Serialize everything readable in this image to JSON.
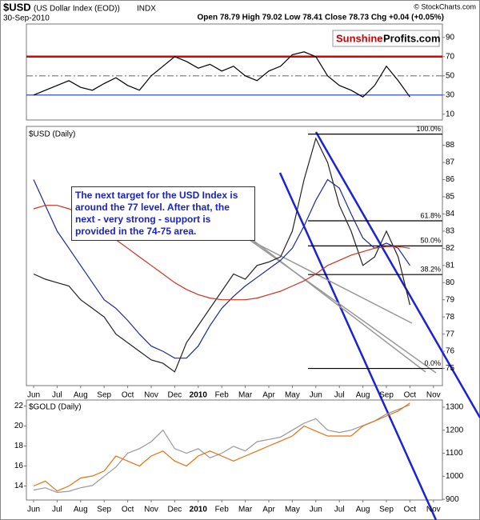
{
  "header": {
    "symbol": "$USD",
    "name": "(US Dollar Index (EOD))",
    "exchange": "INDX",
    "date": "30-Sep-2010",
    "quote": "Open 78.79 High 79.02 Low 78.41 Close 78.73 Chg +0.04 (+0.05%)",
    "copyright": "© StockCharts.com",
    "logo_left": "Sunshine",
    "logo_right": "Profits.com"
  },
  "chart_data": [
    {
      "type": "line",
      "ylim": [
        4,
        104
      ],
      "yticks": [
        10,
        30,
        50,
        70,
        90
      ],
      "reference_lines": [
        {
          "value": 70,
          "color": "#e00000"
        },
        {
          "value": 50,
          "color": "#777777"
        },
        {
          "value": 30,
          "color": "#2233cc"
        }
      ],
      "series": [
        {
          "color": "#000000",
          "values": [
            30,
            35,
            40,
            45,
            38,
            35,
            42,
            48,
            40,
            35,
            50,
            60,
            70,
            65,
            58,
            62,
            55,
            60,
            50,
            45,
            55,
            60,
            72,
            75,
            70,
            50,
            40,
            35,
            28,
            40,
            60,
            45,
            28,
            null,
            null,
            null
          ]
        }
      ]
    },
    {
      "type": "line",
      "label": "$USD (Daily)",
      "ylim": [
        74,
        89.1
      ],
      "yticks": [
        75,
        76,
        77,
        78,
        79,
        80,
        81,
        82,
        83,
        84,
        85,
        86,
        87,
        88
      ],
      "categories": [
        "Jun",
        null,
        "Jul",
        null,
        "Aug",
        null,
        "Sep",
        null,
        "Oct",
        null,
        "Nov",
        null,
        "Dec",
        null,
        "2010",
        null,
        "Feb",
        null,
        "Mar",
        null,
        "Apr",
        null,
        "May",
        null,
        "Jun",
        null,
        "Jul",
        null,
        "Aug",
        null,
        "Sep",
        null,
        "Oct",
        null,
        "Nov",
        null
      ],
      "fib_levels": [
        {
          "value": 88.65,
          "label": "100.0%"
        },
        {
          "value": 83.6,
          "label": "61.8%"
        },
        {
          "value": 82.14,
          "label": "50.0%"
        },
        {
          "value": 80.47,
          "label": "38.2%"
        },
        {
          "value": 75,
          "label": "0.0%"
        }
      ],
      "annotation": "The next target for the USD Index is around the 77 level. After that, the next - very strong - support is provided in the 74-75 area.",
      "series": [
        {
          "color": "#222222",
          "values": [
            80.5,
            80.2,
            80,
            79.8,
            79,
            78.5,
            78,
            77,
            76.5,
            76,
            75.5,
            75.3,
            74.8,
            76.5,
            77.5,
            78.5,
            79.5,
            80.5,
            80.2,
            81,
            81.2,
            81.5,
            83,
            86,
            88.4,
            87,
            84.5,
            83,
            81,
            81.5,
            83,
            81.5,
            78.7,
            null,
            null,
            null
          ]
        },
        {
          "color": "#1a2a9a",
          "values": [
            86,
            84.5,
            83,
            82,
            81,
            80,
            79,
            78.5,
            77.8,
            77,
            76.3,
            76,
            75.6,
            75.6,
            76.3,
            77.5,
            78.5,
            79.2,
            79.8,
            80.3,
            80.8,
            81.3,
            82,
            83.3,
            84.8,
            86,
            85.5,
            84,
            82.6,
            82,
            82.3,
            82,
            81,
            null,
            null,
            null
          ]
        },
        {
          "color": "#d03020",
          "values": [
            84.3,
            84.5,
            84.5,
            84.3,
            84,
            83.5,
            83,
            82.5,
            82,
            81.5,
            81,
            80.5,
            80,
            79.6,
            79.3,
            79.1,
            79,
            79,
            79,
            79.1,
            79.3,
            79.5,
            79.8,
            80.1,
            80.5,
            81,
            81.3,
            81.6,
            81.8,
            82,
            82.1,
            82.1,
            82,
            null,
            null,
            null
          ]
        }
      ]
    },
    {
      "type": "line",
      "label": "$GOLD (Daily)",
      "ylim": [
        12.6,
        22.6
      ],
      "yticks": [
        14,
        16,
        18,
        20,
        22
      ],
      "y2lim": [
        897,
        1331
      ],
      "y2ticks": [
        900,
        1000,
        1100,
        1200,
        1300
      ],
      "categories": [
        "Jun",
        null,
        "Jul",
        null,
        "Aug",
        null,
        "Sep",
        null,
        "Oct",
        null,
        "Nov",
        null,
        "Dec",
        null,
        "2010",
        null,
        "Feb",
        null,
        "Mar",
        null,
        "Apr",
        null,
        "May",
        null,
        "Jun",
        null,
        "Jul",
        null,
        "Aug",
        null,
        "Sep",
        null,
        "Oct",
        null,
        "Nov",
        null
      ],
      "series": [
        {
          "color": "#999999",
          "axis": "y2",
          "values": [
            940,
            950,
            930,
            935,
            950,
            960,
            1000,
            1040,
            1100,
            1120,
            1150,
            1200,
            1120,
            1100,
            1120,
            1080,
            1100,
            1130,
            1110,
            1150,
            1160,
            1170,
            1200,
            1230,
            1250,
            1200,
            1190,
            1200,
            1220,
            1240,
            1270,
            1290,
            1310,
            null,
            null,
            null
          ]
        },
        {
          "color": "#e87010",
          "values": [
            14,
            14.5,
            13.5,
            14,
            14.8,
            15,
            15.5,
            17,
            16.5,
            16,
            17,
            17.5,
            16.5,
            16,
            17,
            17.5,
            17,
            16.5,
            17,
            17.5,
            18,
            18.5,
            19,
            20,
            19.5,
            19,
            19,
            19,
            20,
            20.5,
            21,
            21.5,
            22.3,
            null,
            null,
            null
          ]
        }
      ]
    }
  ]
}
